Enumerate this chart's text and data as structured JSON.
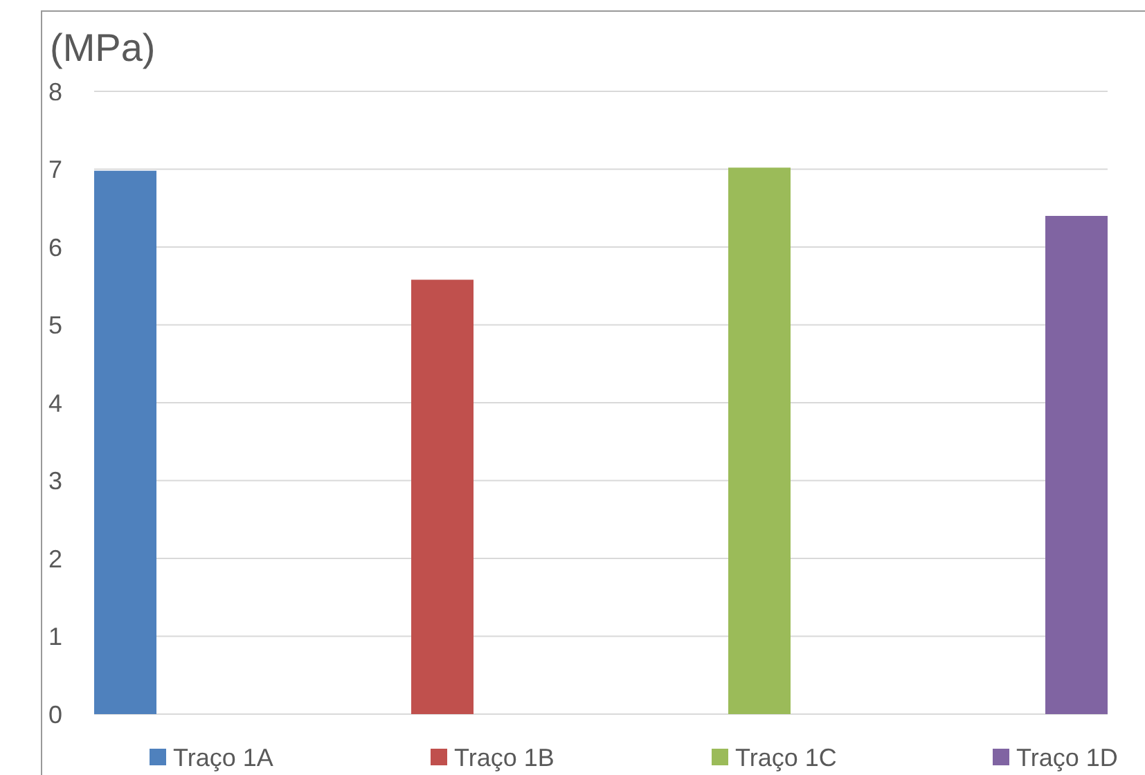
{
  "chart_data": {
    "type": "bar",
    "ylabel": "(MPa)",
    "categories": [
      null
    ],
    "series": [
      {
        "name": "Traço 1A",
        "color": "#4f81bd",
        "values": [
          6.98
        ]
      },
      {
        "name": "Traço 1B",
        "color": "#c0504d",
        "values": [
          5.58
        ]
      },
      {
        "name": "Traço 1C",
        "color": "#9bbb59",
        "values": [
          7.02
        ]
      },
      {
        "name": "Traço 1D",
        "color": "#8064a2",
        "values": [
          6.4
        ]
      }
    ],
    "ylim": [
      0,
      8
    ],
    "yticks": [
      0,
      1,
      2,
      3,
      4,
      5,
      6,
      7,
      8
    ],
    "grid": "y",
    "legend": "bottom"
  }
}
